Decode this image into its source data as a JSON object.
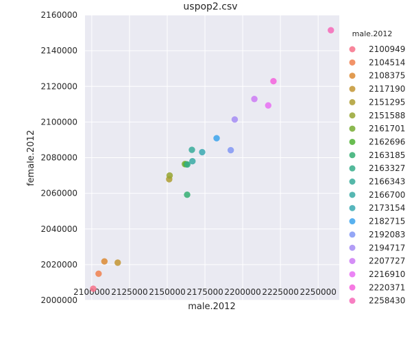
{
  "chart_data": {
    "type": "scatter",
    "title": "uspop2.csv",
    "xlabel": "male.2012",
    "ylabel": "female.2012",
    "xlim": [
      2095500,
      2264000
    ],
    "ylim": [
      2000000,
      2160000
    ],
    "x_ticks": [
      2100000,
      2125000,
      2150000,
      2175000,
      2200000,
      2225000,
      2250000
    ],
    "y_ticks": [
      2000000,
      2020000,
      2040000,
      2060000,
      2080000,
      2100000,
      2120000,
      2140000,
      2160000
    ],
    "grid": true,
    "legend_title": "male.2012",
    "legend_placement": "right",
    "series": [
      {
        "name": "2100949",
        "color": "#f77189",
        "x": 2100949,
        "y": 2006500
      },
      {
        "name": "2104514",
        "color": "#f0804e",
        "x": 2104514,
        "y": 2014900
      },
      {
        "name": "2108375",
        "color": "#dc8932",
        "x": 2108375,
        "y": 2021800
      },
      {
        "name": "2117190",
        "color": "#c39532",
        "x": 2117190,
        "y": 2021100
      },
      {
        "name": "2151295",
        "color": "#ae9d31",
        "x": 2151295,
        "y": 2067900
      },
      {
        "name": "2151588",
        "color": "#97a431",
        "x": 2151588,
        "y": 2070000
      },
      {
        "name": "2161701",
        "color": "#77ab31",
        "x": 2161701,
        "y": 2076400
      },
      {
        "name": "2162696",
        "color": "#4fb132",
        "x": 2162696,
        "y": 2076300
      },
      {
        "name": "2163185",
        "color": "#34ae72",
        "x": 2163185,
        "y": 2059200
      },
      {
        "name": "2163327",
        "color": "#36ad8a",
        "x": 2163327,
        "y": 2076200
      },
      {
        "name": "2166343",
        "color": "#37ab9a",
        "x": 2166343,
        "y": 2084400
      },
      {
        "name": "2166700",
        "color": "#38aaa5",
        "x": 2166700,
        "y": 2078000
      },
      {
        "name": "2173154",
        "color": "#3aa9b2",
        "x": 2173154,
        "y": 2083100
      },
      {
        "name": "2182715",
        "color": "#3ba3ec",
        "x": 2182715,
        "y": 2090900
      },
      {
        "name": "2192083",
        "color": "#8197f4",
        "x": 2192083,
        "y": 2084200
      },
      {
        "name": "2194717",
        "color": "#a48cf4",
        "x": 2194717,
        "y": 2101400
      },
      {
        "name": "2207727",
        "color": "#cc7af4",
        "x": 2207727,
        "y": 2112900
      },
      {
        "name": "2216910",
        "color": "#e76ef3",
        "x": 2216910,
        "y": 2109300
      },
      {
        "name": "2220371",
        "color": "#f461dd",
        "x": 2220371,
        "y": 2122900
      },
      {
        "name": "2258430",
        "color": "#f669b7",
        "x": 2258430,
        "y": 2151500
      }
    ]
  }
}
